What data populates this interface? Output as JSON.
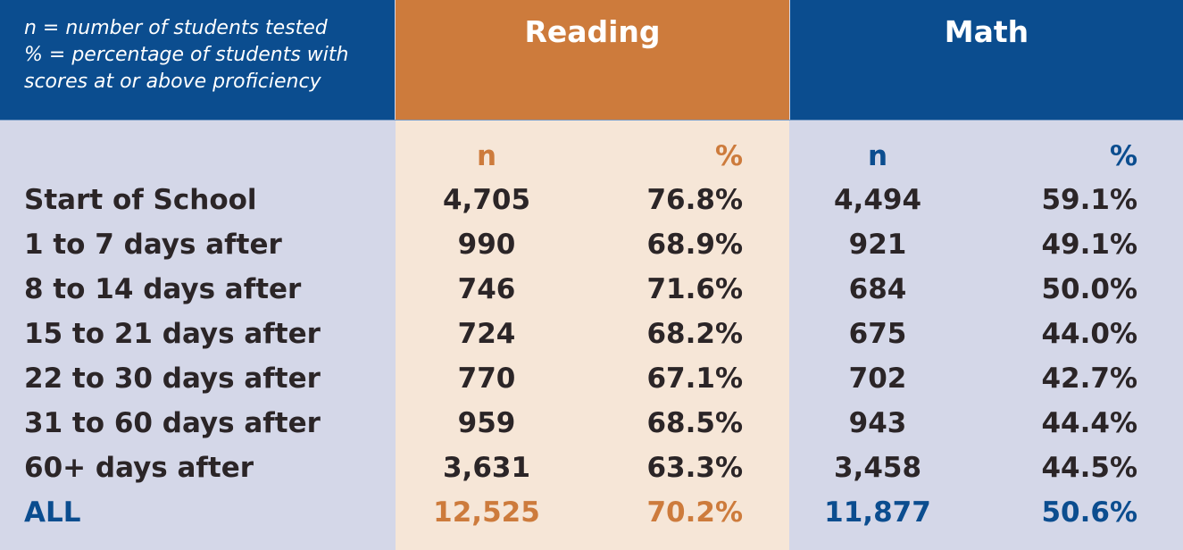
{
  "legend": {
    "line1": "n = number of students tested",
    "line2": "% = percentage of students with",
    "line3": "scores at or above proficiency"
  },
  "colors": {
    "blue": "#0b4d8f",
    "orange": "#cd7b3c",
    "lavender": "#d4d7e8",
    "peach": "#f6e6d7"
  },
  "chart_data": {
    "type": "table",
    "groups": [
      "Reading",
      "Math"
    ],
    "subheaders": [
      "n",
      "%",
      "n",
      "%"
    ],
    "rows": [
      {
        "label": "Start of School",
        "values": [
          "4,705",
          "76.8%",
          "4,494",
          "59.1%"
        ]
      },
      {
        "label": "1 to 7 days after",
        "values": [
          "990",
          "68.9%",
          "921",
          "49.1%"
        ]
      },
      {
        "label": "8 to 14 days after",
        "values": [
          "746",
          "71.6%",
          "684",
          "50.0%"
        ]
      },
      {
        "label": "15 to 21 days after",
        "values": [
          "724",
          "68.2%",
          "675",
          "44.0%"
        ]
      },
      {
        "label": "22 to 30 days after",
        "values": [
          "770",
          "67.1%",
          "702",
          "42.7%"
        ]
      },
      {
        "label": "31 to 60 days after",
        "values": [
          "959",
          "68.5%",
          "943",
          "44.4%"
        ]
      },
      {
        "label": "60+ days after",
        "values": [
          "3,631",
          "63.3%",
          "3,458",
          "44.5%"
        ]
      },
      {
        "label": "ALL",
        "values": [
          "12,525",
          "70.2%",
          "11,877",
          "50.6%"
        ]
      }
    ]
  }
}
